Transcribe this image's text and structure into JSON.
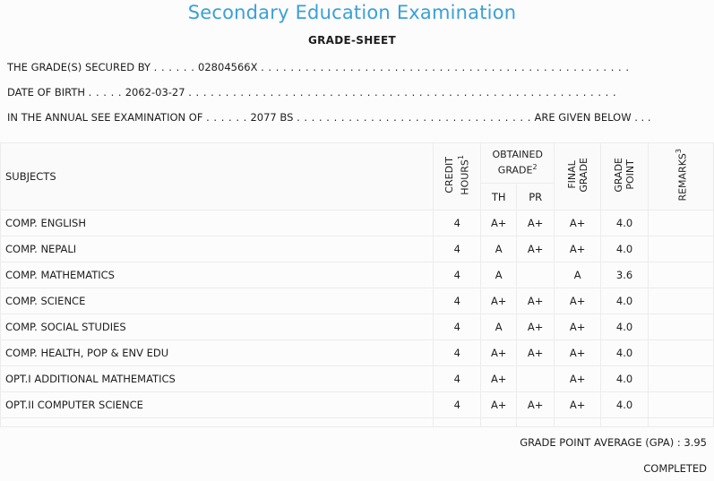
{
  "header": {
    "title": "Secondary Education Examination",
    "subtitle": "GRADE-SHEET"
  },
  "info": {
    "secured_by_label": "THE GRADE(S) SECURED BY",
    "secured_by_value": "02804566X",
    "dob_label": "DATE OF BIRTH",
    "dob_value": "2062-03-27",
    "exam_label": "IN THE ANNUAL SEE EXAMINATION OF",
    "exam_value": "2077 BS",
    "exam_suffix": "ARE GIVEN BELOW . . ."
  },
  "table": {
    "headers": {
      "subjects": "SUBJECTS",
      "credit_hours": "CREDIT\nHOURS",
      "credit_hours_note": "1",
      "obtained_grade": "OBTAINED GRADE",
      "obtained_grade_note": "2",
      "th": "TH",
      "pr": "PR",
      "final_grade": "FINAL\nGRADE",
      "grade_point": "GRADE\nPOINT",
      "remarks": "REMARKS",
      "remarks_note": "3"
    },
    "rows": [
      {
        "subject": "COMP. ENGLISH",
        "credit": "4",
        "th": "A+",
        "pr": "A+",
        "final": "A+",
        "gp": "4.0",
        "remarks": ""
      },
      {
        "subject": "COMP. NEPALI",
        "credit": "4",
        "th": "A",
        "pr": "A+",
        "final": "A+",
        "gp": "4.0",
        "remarks": ""
      },
      {
        "subject": "COMP. MATHEMATICS",
        "credit": "4",
        "th": "A",
        "pr": "",
        "final": "A",
        "gp": "3.6",
        "remarks": ""
      },
      {
        "subject": "COMP. SCIENCE",
        "credit": "4",
        "th": "A+",
        "pr": "A+",
        "final": "A+",
        "gp": "4.0",
        "remarks": ""
      },
      {
        "subject": "COMP. SOCIAL STUDIES",
        "credit": "4",
        "th": "A",
        "pr": "A+",
        "final": "A+",
        "gp": "4.0",
        "remarks": ""
      },
      {
        "subject": "COMP. HEALTH, POP & ENV EDU",
        "credit": "4",
        "th": "A+",
        "pr": "A+",
        "final": "A+",
        "gp": "4.0",
        "remarks": ""
      },
      {
        "subject": "OPT.I ADDITIONAL MATHEMATICS",
        "credit": "4",
        "th": "A+",
        "pr": "",
        "final": "A+",
        "gp": "4.0",
        "remarks": ""
      },
      {
        "subject": "OPT.II COMPUTER SCIENCE",
        "credit": "4",
        "th": "A+",
        "pr": "A+",
        "final": "A+",
        "gp": "4.0",
        "remarks": ""
      }
    ]
  },
  "summary": {
    "gpa_label": "GRADE POINT AVERAGE (GPA) :",
    "gpa_value": "3.95",
    "status": "COMPLETED"
  }
}
